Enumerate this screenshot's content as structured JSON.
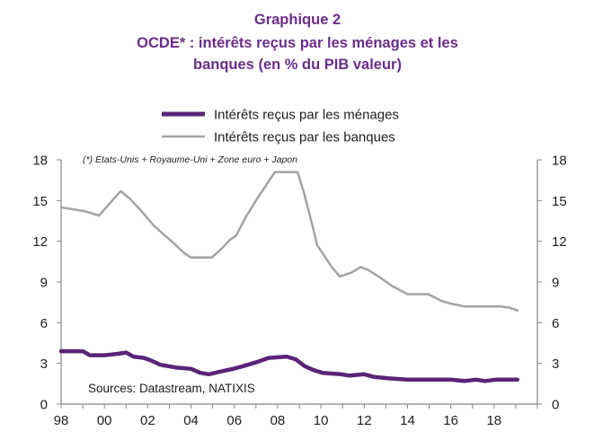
{
  "colors": {
    "title": "#6b2d8b",
    "axis": "#858585",
    "text": "#1e1e1e"
  },
  "chart_data": {
    "type": "line",
    "heading": "Graphique 2",
    "title": [
      "OCDE* : intérêts reçus par les ménages et les",
      "banques (en % du PIB valeur)"
    ],
    "note": "(*) Etats-Unis + Royaume-Uni + Zone euro + Japon",
    "source": "Sources: Datastream, NATIXIS",
    "xlabel": "",
    "ylabel": "",
    "xlim": [
      1998,
      2020
    ],
    "ylim": [
      0,
      18
    ],
    "x_ticks": [
      1998,
      2000,
      2002,
      2004,
      2006,
      2008,
      2010,
      2012,
      2014,
      2016,
      2018
    ],
    "x_tick_labels": [
      "98",
      "00",
      "02",
      "04",
      "06",
      "08",
      "10",
      "12",
      "14",
      "16",
      "18"
    ],
    "y_ticks": [
      0,
      3,
      6,
      9,
      12,
      15,
      18
    ],
    "y2_ticks": [
      0,
      3,
      6,
      9,
      12,
      15,
      18
    ],
    "grid": false,
    "legend_position": "top-center",
    "series": [
      {
        "name": "Intérêts reçus par les ménages",
        "color": "#5a2478",
        "x": [
          1998.0,
          1998.5,
          1999.0,
          1999.33,
          2000.0,
          2000.58,
          2001.0,
          2001.33,
          2001.83,
          2002.17,
          2002.58,
          2003.29,
          2004.0,
          2004.42,
          2004.83,
          2005.38,
          2005.96,
          2006.42,
          2007.04,
          2007.58,
          2008.42,
          2008.83,
          2009.25,
          2009.67,
          2010.08,
          2010.92,
          2011.33,
          2012.0,
          2012.46,
          2013.08,
          2014.0,
          2015.0,
          2016.0,
          2016.63,
          2017.17,
          2017.58,
          2018.08,
          2019.08
        ],
        "y": [
          3.9,
          3.9,
          3.9,
          3.6,
          3.6,
          3.7,
          3.8,
          3.5,
          3.4,
          3.2,
          2.9,
          2.7,
          2.6,
          2.3,
          2.2,
          2.4,
          2.6,
          2.8,
          3.1,
          3.4,
          3.5,
          3.3,
          2.8,
          2.5,
          2.3,
          2.2,
          2.1,
          2.2,
          2.0,
          1.9,
          1.8,
          1.8,
          1.8,
          1.7,
          1.8,
          1.7,
          1.8,
          1.8
        ]
      },
      {
        "name": "Intérêts reçus par les banques",
        "color": "#a3a3a3",
        "x": [
          1998.0,
          1999.13,
          1999.75,
          2000.75,
          2001.2,
          2001.83,
          2002.25,
          2002.67,
          2003.17,
          2003.71,
          2004.0,
          2004.96,
          2005.38,
          2005.79,
          2006.08,
          2006.5,
          2007.04,
          2007.58,
          2007.88,
          2008.92,
          2009.21,
          2009.54,
          2009.83,
          2010.17,
          2010.5,
          2010.88,
          2011.42,
          2011.83,
          2012.17,
          2012.67,
          2013.29,
          2014.0,
          2014.96,
          2015.58,
          2016.0,
          2016.63,
          2018.29,
          2018.71,
          2019.08
        ],
        "y": [
          14.5,
          14.2,
          13.9,
          15.7,
          15.1,
          14.0,
          13.2,
          12.6,
          11.9,
          11.1,
          10.8,
          10.8,
          11.4,
          12.1,
          12.4,
          13.7,
          15.1,
          16.4,
          17.1,
          17.1,
          15.6,
          13.6,
          11.7,
          10.9,
          10.1,
          9.4,
          9.7,
          10.1,
          9.9,
          9.4,
          8.7,
          8.1,
          8.1,
          7.6,
          7.4,
          7.2,
          7.2,
          7.1,
          6.9
        ]
      }
    ]
  }
}
